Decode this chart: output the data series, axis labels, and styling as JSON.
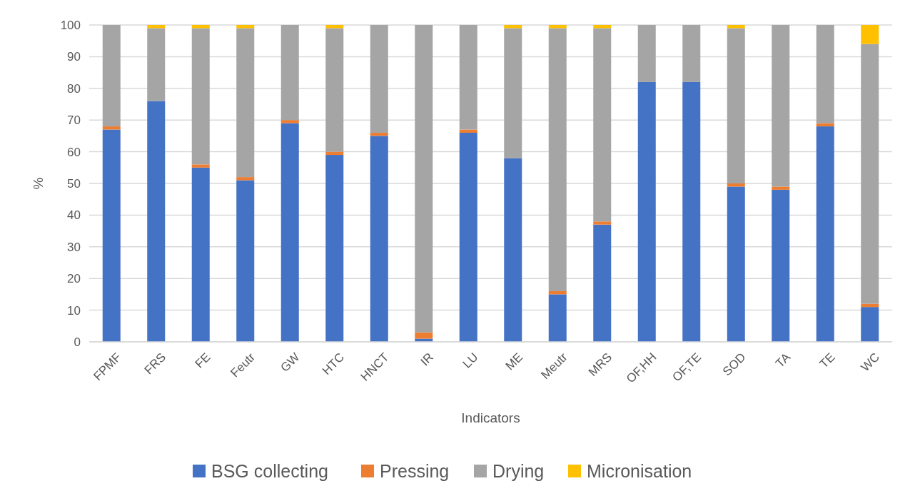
{
  "chart_data": {
    "type": "bar",
    "stacked": true,
    "xlabel": "Indicators",
    "ylabel": "%",
    "categories": [
      "FPMF",
      "FRS",
      "FE",
      "Feutr",
      "GW",
      "HTC",
      "HNCT",
      "IR",
      "LU",
      "ME",
      "Meutr",
      "MRS",
      "OF,HH",
      "OF,TE",
      "SOD",
      "TA",
      "TE",
      "WC"
    ],
    "series": [
      {
        "name": "BSG collecting",
        "color": "#4472c4",
        "values": [
          67,
          76,
          55,
          51,
          69,
          59,
          65,
          1,
          66,
          58,
          15,
          37,
          82,
          82,
          49,
          48,
          68,
          11
        ]
      },
      {
        "name": "Pressing",
        "color": "#ed7d31",
        "values": [
          1,
          0,
          1,
          1,
          1,
          1,
          1,
          2,
          1,
          0,
          1,
          1,
          0,
          0,
          1,
          1,
          1,
          1
        ]
      },
      {
        "name": "Drying",
        "color": "#a5a5a5",
        "values": [
          32,
          23,
          43,
          47,
          30,
          39,
          34,
          97,
          33,
          41,
          83,
          61,
          18,
          18,
          49,
          51,
          31,
          82
        ]
      },
      {
        "name": "Micronisation",
        "color": "#ffc000",
        "values": [
          0,
          1,
          1,
          1,
          0,
          1,
          0,
          0,
          0,
          1,
          1,
          1,
          0,
          0,
          1,
          0,
          0,
          6
        ]
      }
    ],
    "ylim": [
      0,
      100
    ],
    "yticks": [
      0,
      10,
      20,
      30,
      40,
      50,
      60,
      70,
      80,
      90,
      100
    ],
    "grid": "y",
    "legend": "bottom"
  }
}
